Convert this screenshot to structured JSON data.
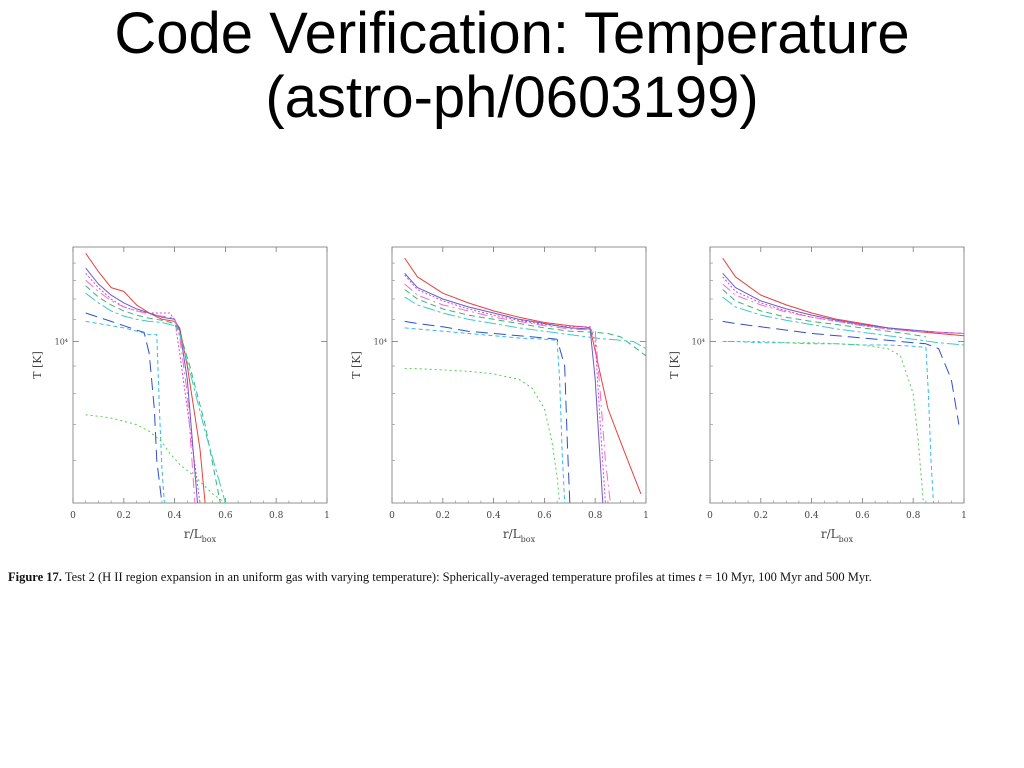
{
  "slide": {
    "title_line1": "Code Verification: Temperature",
    "title_line2": "(astro-ph/0603199)"
  },
  "caption": {
    "label": "Figure 17.",
    "text_part1": " Test 2 (H II region expansion in an uniform gas with varying temperature): Spherically-averaged temperature profiles at times ",
    "math_var": "t",
    "text_part2": " = 10 Myr, 100 Myr and 500 Myr."
  },
  "chart_data": [
    {
      "type": "line",
      "ylabel": "T [K]",
      "xlabel": "r/L",
      "xlabel_sub": "box",
      "xlim": [
        0,
        1
      ],
      "ylim": [
        5000,
        15000
      ],
      "y_scale": "log",
      "x_ticks": [
        0,
        0.2,
        0.4,
        0.6,
        0.8,
        1
      ],
      "y_tick_label": "10⁴",
      "y_tick_value": 10000,
      "grid": false,
      "series": [
        {
          "color": "#e8413b",
          "dash": "",
          "x": [
            0.05,
            0.1,
            0.15,
            0.2,
            0.25,
            0.3,
            0.35,
            0.4,
            0.42,
            0.45,
            0.5,
            0.52
          ],
          "y": [
            14600,
            13500,
            12600,
            12400,
            11700,
            11300,
            11000,
            10900,
            10600,
            9000,
            6300,
            5000
          ]
        },
        {
          "color": "#d44ad4",
          "dash": "2 2",
          "x": [
            0.05,
            0.1,
            0.15,
            0.2,
            0.25,
            0.3,
            0.35,
            0.38,
            0.4,
            0.42,
            0.45,
            0.5
          ],
          "y": [
            13400,
            12600,
            12000,
            11600,
            11400,
            11300,
            11300,
            11300,
            11000,
            9500,
            7500,
            5000
          ]
        },
        {
          "color": "#6a5acd",
          "dash": "",
          "x": [
            0.05,
            0.1,
            0.15,
            0.2,
            0.25,
            0.3,
            0.35,
            0.4,
            0.42,
            0.45,
            0.49
          ],
          "y": [
            13700,
            12800,
            12200,
            11800,
            11500,
            11300,
            11100,
            11000,
            10500,
            8500,
            5000
          ]
        },
        {
          "color": "#ff66cc",
          "dash": "10 4 2 4",
          "x": [
            0.05,
            0.1,
            0.15,
            0.2,
            0.25,
            0.3,
            0.35,
            0.4,
            0.42,
            0.45,
            0.48
          ],
          "y": [
            13000,
            12400,
            11900,
            11600,
            11400,
            11250,
            11150,
            11050,
            10200,
            8000,
            5000
          ]
        },
        {
          "color": "#3cb371",
          "dash": "6 4",
          "x": [
            0.05,
            0.1,
            0.15,
            0.2,
            0.25,
            0.3,
            0.35,
            0.4,
            0.42,
            0.46,
            0.52,
            0.58
          ],
          "y": [
            12700,
            12100,
            11700,
            11400,
            11200,
            11050,
            10950,
            10800,
            10400,
            9000,
            7000,
            5000
          ]
        },
        {
          "color": "#40c8c8",
          "dash": "12 3 3 3",
          "x": [
            0.05,
            0.1,
            0.15,
            0.2,
            0.25,
            0.3,
            0.35,
            0.4,
            0.42,
            0.46,
            0.52,
            0.6
          ],
          "y": [
            12300,
            11800,
            11400,
            11150,
            11000,
            10900,
            10850,
            10700,
            10300,
            8800,
            6800,
            5000
          ]
        },
        {
          "color": "#2e4fd0",
          "dash": "12 6",
          "x": [
            0.05,
            0.1,
            0.15,
            0.2,
            0.25,
            0.28,
            0.3,
            0.32,
            0.33,
            0.35
          ],
          "y": [
            11300,
            11100,
            10900,
            10700,
            10500,
            10400,
            9500,
            7500,
            6000,
            5000
          ]
        },
        {
          "color": "#33bbee",
          "dash": "4 3",
          "x": [
            0.05,
            0.1,
            0.15,
            0.2,
            0.25,
            0.3,
            0.33,
            0.34,
            0.35,
            0.36
          ],
          "y": [
            10900,
            10800,
            10700,
            10600,
            10450,
            10300,
            10300,
            7500,
            5800,
            5000
          ]
        },
        {
          "color": "#4cd44c",
          "dash": "2 3",
          "x": [
            0.05,
            0.1,
            0.15,
            0.2,
            0.25,
            0.3,
            0.35,
            0.38,
            0.42,
            0.48,
            0.55,
            0.6
          ],
          "y": [
            7300,
            7250,
            7200,
            7100,
            7000,
            6800,
            6500,
            6200,
            5900,
            5600,
            5200,
            5000
          ]
        }
      ]
    },
    {
      "type": "line",
      "ylabel": "T [K]",
      "xlabel": "r/L",
      "xlabel_sub": "box",
      "xlim": [
        0,
        1
      ],
      "ylim": [
        5000,
        15000
      ],
      "y_scale": "log",
      "x_ticks": [
        0,
        0.2,
        0.4,
        0.6,
        0.8,
        1
      ],
      "y_tick_label": "10⁴",
      "y_tick_value": 10000,
      "grid": false,
      "series": [
        {
          "color": "#e8413b",
          "dash": "",
          "x": [
            0.05,
            0.1,
            0.2,
            0.3,
            0.4,
            0.5,
            0.6,
            0.7,
            0.75,
            0.78,
            0.85,
            0.9,
            0.98
          ],
          "y": [
            14300,
            13200,
            12300,
            11800,
            11400,
            11100,
            10850,
            10700,
            10650,
            10600,
            7500,
            6500,
            5200
          ]
        },
        {
          "color": "#d44ad4",
          "dash": "2 2",
          "x": [
            0.05,
            0.1,
            0.2,
            0.3,
            0.4,
            0.5,
            0.6,
            0.7,
            0.78,
            0.8,
            0.82,
            0.84
          ],
          "y": [
            13300,
            12500,
            11900,
            11500,
            11200,
            10950,
            10750,
            10650,
            10650,
            10000,
            7000,
            5000
          ]
        },
        {
          "color": "#6a5acd",
          "dash": "",
          "x": [
            0.05,
            0.1,
            0.2,
            0.3,
            0.4,
            0.5,
            0.6,
            0.7,
            0.78,
            0.8,
            0.83
          ],
          "y": [
            13400,
            12600,
            12000,
            11600,
            11300,
            11000,
            10800,
            10600,
            10550,
            8500,
            5000
          ]
        },
        {
          "color": "#ff66cc",
          "dash": "10 4 2 4",
          "x": [
            0.05,
            0.1,
            0.2,
            0.3,
            0.4,
            0.5,
            0.6,
            0.7,
            0.8,
            0.82,
            0.84,
            0.86
          ],
          "y": [
            12800,
            12200,
            11700,
            11400,
            11100,
            10900,
            10700,
            10550,
            10500,
            8000,
            6000,
            5000
          ]
        },
        {
          "color": "#3cb371",
          "dash": "6 4",
          "x": [
            0.05,
            0.1,
            0.2,
            0.3,
            0.4,
            0.5,
            0.6,
            0.7,
            0.8,
            0.85,
            0.9,
            0.95,
            1.0
          ],
          "y": [
            12500,
            12000,
            11500,
            11200,
            11000,
            10800,
            10600,
            10450,
            10400,
            10350,
            10200,
            9800,
            9400
          ]
        },
        {
          "color": "#40c8c8",
          "dash": "12 3 3 3",
          "x": [
            0.05,
            0.1,
            0.2,
            0.3,
            0.4,
            0.5,
            0.6,
            0.7,
            0.8,
            0.9,
            0.95,
            1.0
          ],
          "y": [
            12100,
            11700,
            11300,
            11000,
            10800,
            10600,
            10450,
            10300,
            10150,
            10050,
            10000,
            9700
          ]
        },
        {
          "color": "#2e4fd0",
          "dash": "12 6",
          "x": [
            0.05,
            0.1,
            0.2,
            0.3,
            0.4,
            0.5,
            0.6,
            0.65,
            0.68,
            0.69,
            0.7
          ],
          "y": [
            10900,
            10800,
            10650,
            10450,
            10350,
            10250,
            10150,
            10100,
            9000,
            6500,
            5000
          ]
        },
        {
          "color": "#33bbee",
          "dash": "4 3",
          "x": [
            0.05,
            0.1,
            0.2,
            0.3,
            0.4,
            0.5,
            0.6,
            0.65,
            0.66,
            0.67,
            0.68
          ],
          "y": [
            10600,
            10550,
            10450,
            10350,
            10250,
            10150,
            10100,
            10050,
            8500,
            6200,
            5000
          ]
        },
        {
          "color": "#4cd44c",
          "dash": "2 3",
          "x": [
            0.05,
            0.1,
            0.2,
            0.3,
            0.4,
            0.5,
            0.55,
            0.6,
            0.63,
            0.65,
            0.66
          ],
          "y": [
            8900,
            8900,
            8850,
            8800,
            8700,
            8500,
            8200,
            7500,
            6500,
            5600,
            5000
          ]
        }
      ]
    },
    {
      "type": "line",
      "ylabel": "T [K]",
      "xlabel": "r/L",
      "xlabel_sub": "box",
      "xlim": [
        0,
        1
      ],
      "ylim": [
        5000,
        15000
      ],
      "y_scale": "log",
      "x_ticks": [
        0,
        0.2,
        0.4,
        0.6,
        0.8,
        1
      ],
      "y_tick_label": "10⁴",
      "y_tick_value": 10000,
      "grid": false,
      "series": [
        {
          "color": "#e8413b",
          "dash": "",
          "x": [
            0.05,
            0.1,
            0.2,
            0.3,
            0.4,
            0.5,
            0.6,
            0.7,
            0.8,
            0.9,
            1.0
          ],
          "y": [
            14300,
            13200,
            12200,
            11700,
            11300,
            11000,
            10800,
            10600,
            10450,
            10350,
            10250
          ]
        },
        {
          "color": "#d44ad4",
          "dash": "2 2",
          "x": [
            0.05,
            0.1,
            0.2,
            0.3,
            0.4,
            0.5,
            0.6,
            0.7,
            0.8,
            0.9,
            1.0
          ],
          "y": [
            13200,
            12400,
            11800,
            11400,
            11100,
            10900,
            10700,
            10550,
            10450,
            10400,
            10350
          ]
        },
        {
          "color": "#6a5acd",
          "dash": "",
          "x": [
            0.05,
            0.1,
            0.2,
            0.3,
            0.4,
            0.5,
            0.6,
            0.7,
            0.8,
            0.9,
            1.0
          ],
          "y": [
            13400,
            12600,
            11900,
            11500,
            11200,
            10950,
            10750,
            10600,
            10500,
            10400,
            10350
          ]
        },
        {
          "color": "#ff66cc",
          "dash": "10 4 2 4",
          "x": [
            0.05,
            0.1,
            0.2,
            0.3,
            0.4,
            0.5,
            0.6,
            0.7,
            0.8,
            0.9,
            1.0
          ],
          "y": [
            12800,
            12200,
            11700,
            11350,
            11100,
            10900,
            10700,
            10550,
            10450,
            10400,
            10350
          ]
        },
        {
          "color": "#3cb371",
          "dash": "6 4",
          "x": [
            0.05,
            0.1,
            0.2,
            0.3,
            0.4,
            0.5,
            0.6,
            0.7,
            0.8,
            0.85
          ],
          "y": [
            12500,
            11900,
            11400,
            11100,
            10900,
            10750,
            10600,
            10450,
            10300,
            10200
          ]
        },
        {
          "color": "#40c8c8",
          "dash": "12 3 3 3",
          "x": [
            0.05,
            0.1,
            0.2,
            0.3,
            0.4,
            0.5,
            0.6,
            0.7,
            0.8,
            0.9,
            1.0
          ],
          "y": [
            12100,
            11600,
            11200,
            10950,
            10750,
            10550,
            10400,
            10250,
            10100,
            9950,
            9850
          ]
        },
        {
          "color": "#2e4fd0",
          "dash": "12 6",
          "x": [
            0.05,
            0.1,
            0.2,
            0.3,
            0.4,
            0.5,
            0.6,
            0.7,
            0.8,
            0.85,
            0.9,
            0.95,
            0.98
          ],
          "y": [
            10900,
            10800,
            10650,
            10500,
            10350,
            10250,
            10150,
            10050,
            9950,
            9900,
            9700,
            8500,
            7000
          ]
        },
        {
          "color": "#33bbee",
          "dash": "4 3",
          "x": [
            0.05,
            0.1,
            0.2,
            0.3,
            0.4,
            0.5,
            0.6,
            0.7,
            0.8,
            0.85,
            0.86,
            0.87,
            0.88
          ],
          "y": [
            10000,
            10000,
            9950,
            9950,
            9900,
            9900,
            9850,
            9850,
            9800,
            9750,
            8000,
            6000,
            5000
          ]
        },
        {
          "color": "#4cd44c",
          "dash": "2 3",
          "x": [
            0.05,
            0.1,
            0.2,
            0.3,
            0.4,
            0.5,
            0.6,
            0.7,
            0.75,
            0.8,
            0.82,
            0.84
          ],
          "y": [
            10000,
            10000,
            10000,
            9950,
            9950,
            9900,
            9850,
            9700,
            9400,
            8000,
            6500,
            5000
          ]
        }
      ]
    }
  ]
}
